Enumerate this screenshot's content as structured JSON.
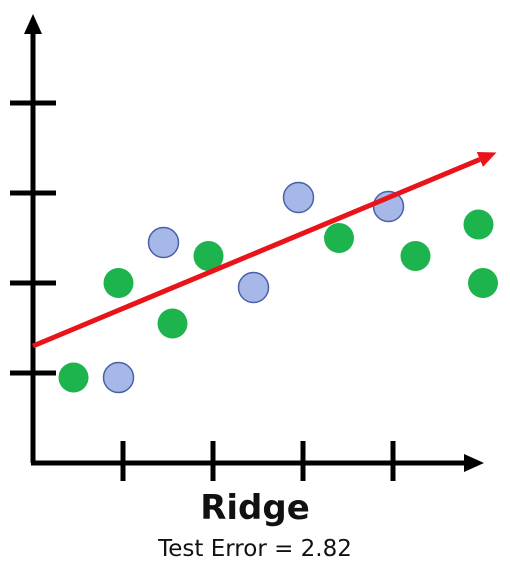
{
  "chart_data": {
    "type": "scatter",
    "title": "Ridge",
    "subtitle": "Test Error = 2.82",
    "xlabel": "",
    "ylabel": "",
    "xlim": [
      0,
      5
    ],
    "ylim": [
      0,
      5
    ],
    "x_ticks": [
      1,
      2,
      3,
      4
    ],
    "y_ticks": [
      1,
      2,
      3,
      4
    ],
    "grid": false,
    "series": [
      {
        "color": "#1DB34D",
        "points": [
          [
            0.45,
            0.95
          ],
          [
            0.95,
            2.0
          ],
          [
            1.55,
            1.55
          ],
          [
            1.95,
            2.3
          ],
          [
            3.4,
            2.5
          ],
          [
            4.25,
            2.3
          ],
          [
            4.95,
            2.65
          ],
          [
            5.0,
            2.0
          ]
        ]
      },
      {
        "color": "#A5B8E8",
        "points": [
          [
            0.95,
            0.95
          ],
          [
            1.45,
            2.45
          ],
          [
            2.45,
            1.95
          ],
          [
            2.95,
            2.95
          ],
          [
            3.95,
            2.85
          ]
        ]
      }
    ],
    "fit_line": {
      "color": "#E8141A",
      "from": [
        0.0,
        1.3
      ],
      "to": [
        5.15,
        3.45
      ]
    }
  }
}
